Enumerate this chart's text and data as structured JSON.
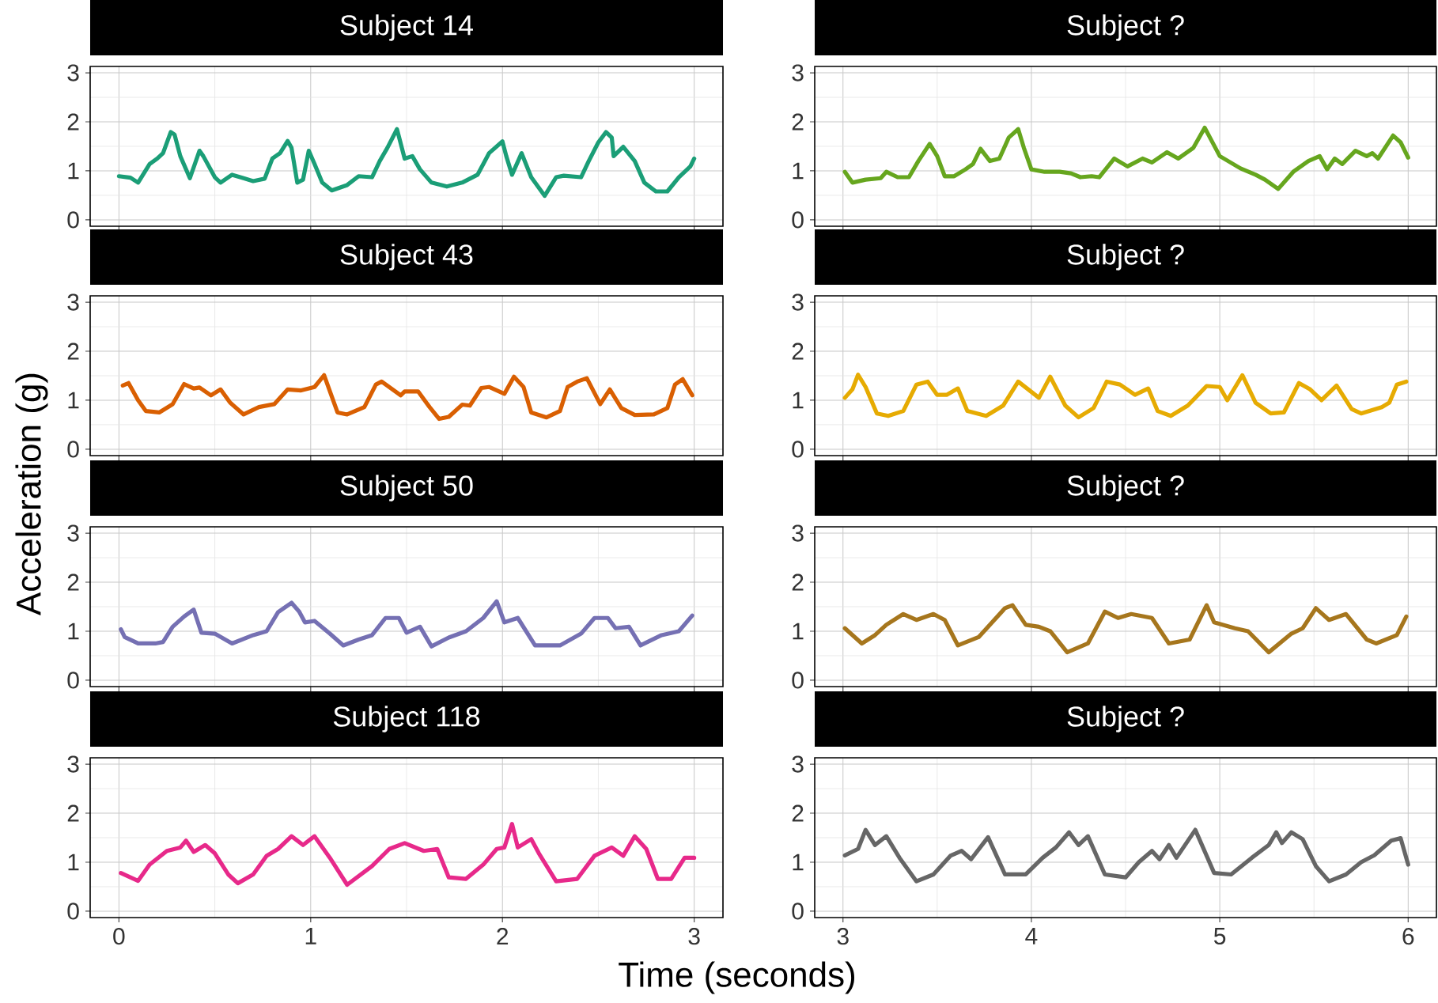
{
  "chart_data": [
    {
      "type": "line",
      "title": "Subject 14",
      "ylabel": "Acceleration (g)",
      "color": "#1b9e77",
      "xlim": [
        -0.15,
        3.15
      ],
      "ylim": [
        -0.13,
        3.13
      ],
      "xticks": [
        0,
        1,
        2,
        3
      ],
      "yticks": [
        0,
        1,
        2,
        3
      ],
      "grid": true,
      "tick_labels": "y",
      "x": [
        0,
        0.06,
        0.1,
        0.16,
        0.2,
        0.23,
        0.27,
        0.29,
        0.32,
        0.37,
        0.42,
        0.44,
        0.5,
        0.53,
        0.59,
        0.65,
        0.7,
        0.76,
        0.8,
        0.84,
        0.88,
        0.9,
        0.93,
        0.96,
        0.99,
        1.02,
        1.06,
        1.11,
        1.19,
        1.25,
        1.32,
        1.36,
        1.4,
        1.45,
        1.49,
        1.53,
        1.57,
        1.63,
        1.71,
        1.79,
        1.87,
        1.93,
        2.0,
        2.02,
        2.05,
        2.1,
        2.15,
        2.22,
        2.28,
        2.32,
        2.41,
        2.45,
        2.5,
        2.54,
        2.57,
        2.58,
        2.63,
        2.69,
        2.74,
        2.8,
        2.86,
        2.92,
        2.98,
        3.0
      ],
      "values": [
        0.89,
        0.86,
        0.76,
        1.14,
        1.25,
        1.36,
        1.79,
        1.74,
        1.3,
        0.85,
        1.41,
        1.3,
        0.87,
        0.76,
        0.92,
        0.85,
        0.79,
        0.84,
        1.25,
        1.36,
        1.61,
        1.47,
        0.76,
        0.82,
        1.41,
        1.14,
        0.76,
        0.6,
        0.71,
        0.89,
        0.87,
        1.2,
        1.47,
        1.85,
        1.25,
        1.3,
        1.03,
        0.76,
        0.68,
        0.76,
        0.92,
        1.36,
        1.6,
        1.3,
        0.92,
        1.36,
        0.87,
        0.49,
        0.87,
        0.9,
        0.87,
        1.2,
        1.58,
        1.79,
        1.68,
        1.3,
        1.49,
        1.2,
        0.76,
        0.58,
        0.58,
        0.87,
        1.09,
        1.25
      ]
    },
    {
      "type": "line",
      "title": "Subject ?",
      "color": "#66a61e",
      "xlim": [
        2.85,
        6.15
      ],
      "ylim": [
        -0.13,
        3.13
      ],
      "xticks": [
        3,
        4,
        5,
        6
      ],
      "yticks": [
        0,
        1,
        2,
        3
      ],
      "grid": true,
      "tick_labels": "y",
      "x": [
        3.01,
        3.05,
        3.12,
        3.2,
        3.23,
        3.29,
        3.35,
        3.4,
        3.46,
        3.5,
        3.54,
        3.59,
        3.65,
        3.69,
        3.73,
        3.78,
        3.83,
        3.88,
        3.93,
        3.96,
        4.0,
        4.07,
        4.15,
        4.21,
        4.26,
        4.32,
        4.36,
        4.44,
        4.51,
        4.59,
        4.64,
        4.72,
        4.78,
        4.86,
        4.92,
        5.0,
        5.11,
        5.19,
        5.24,
        5.31,
        5.39,
        5.47,
        5.53,
        5.57,
        5.61,
        5.65,
        5.72,
        5.78,
        5.81,
        5.84,
        5.92,
        5.96,
        6.0
      ],
      "values": [
        0.98,
        0.76,
        0.82,
        0.85,
        0.98,
        0.87,
        0.87,
        1.2,
        1.55,
        1.3,
        0.89,
        0.89,
        1.03,
        1.14,
        1.45,
        1.2,
        1.25,
        1.68,
        1.85,
        1.47,
        1.03,
        0.98,
        0.98,
        0.95,
        0.87,
        0.89,
        0.87,
        1.25,
        1.09,
        1.25,
        1.17,
        1.38,
        1.25,
        1.47,
        1.88,
        1.3,
        1.05,
        0.92,
        0.82,
        0.63,
        0.98,
        1.2,
        1.3,
        1.03,
        1.25,
        1.14,
        1.41,
        1.3,
        1.36,
        1.25,
        1.72,
        1.58,
        1.27
      ]
    },
    {
      "type": "line",
      "title": "Subject 43",
      "color": "#d95f02",
      "xlim": [
        -0.15,
        3.15
      ],
      "ylim": [
        -0.13,
        3.13
      ],
      "xticks": [
        0,
        1,
        2,
        3
      ],
      "yticks": [
        0,
        1,
        2,
        3
      ],
      "grid": true,
      "tick_labels": "y",
      "x": [
        0.02,
        0.05,
        0.1,
        0.14,
        0.21,
        0.28,
        0.34,
        0.39,
        0.42,
        0.48,
        0.53,
        0.58,
        0.65,
        0.73,
        0.81,
        0.88,
        0.95,
        1.02,
        1.07,
        1.14,
        1.19,
        1.28,
        1.34,
        1.37,
        1.42,
        1.47,
        1.49,
        1.56,
        1.62,
        1.67,
        1.72,
        1.79,
        1.83,
        1.89,
        1.93,
        2.01,
        2.06,
        2.11,
        2.15,
        2.23,
        2.3,
        2.34,
        2.39,
        2.44,
        2.51,
        2.56,
        2.62,
        2.69,
        2.79,
        2.86,
        2.9,
        2.94,
        2.99
      ],
      "values": [
        1.3,
        1.35,
        1.0,
        0.78,
        0.75,
        0.92,
        1.33,
        1.24,
        1.26,
        1.1,
        1.22,
        0.95,
        0.71,
        0.86,
        0.92,
        1.22,
        1.2,
        1.27,
        1.51,
        0.75,
        0.71,
        0.86,
        1.32,
        1.38,
        1.24,
        1.1,
        1.18,
        1.18,
        0.86,
        0.62,
        0.66,
        0.91,
        0.89,
        1.25,
        1.27,
        1.13,
        1.48,
        1.27,
        0.75,
        0.65,
        0.78,
        1.27,
        1.38,
        1.45,
        0.92,
        1.22,
        0.84,
        0.7,
        0.71,
        0.84,
        1.32,
        1.43,
        1.1
      ]
    },
    {
      "type": "line",
      "title": "Subject ?",
      "color": "#e6ab02",
      "xlim": [
        2.85,
        6.15
      ],
      "ylim": [
        -0.13,
        3.13
      ],
      "xticks": [
        3,
        4,
        5,
        6
      ],
      "yticks": [
        0,
        1,
        2,
        3
      ],
      "grid": true,
      "tick_labels": "y",
      "x": [
        3.01,
        3.05,
        3.08,
        3.12,
        3.18,
        3.24,
        3.32,
        3.39,
        3.45,
        3.5,
        3.55,
        3.61,
        3.66,
        3.76,
        3.85,
        3.93,
        4.04,
        4.1,
        4.18,
        4.25,
        4.33,
        4.4,
        4.47,
        4.55,
        4.62,
        4.67,
        4.74,
        4.83,
        4.93,
        5.0,
        5.04,
        5.12,
        5.19,
        5.27,
        5.34,
        5.42,
        5.48,
        5.54,
        5.62,
        5.7,
        5.75,
        5.86,
        5.9,
        5.94,
        5.99
      ],
      "values": [
        1.05,
        1.22,
        1.52,
        1.27,
        0.73,
        0.68,
        0.78,
        1.32,
        1.38,
        1.11,
        1.11,
        1.24,
        0.78,
        0.68,
        0.89,
        1.38,
        1.05,
        1.48,
        0.89,
        0.65,
        0.84,
        1.38,
        1.32,
        1.11,
        1.24,
        0.78,
        0.68,
        0.89,
        1.29,
        1.27,
        1.0,
        1.51,
        0.95,
        0.73,
        0.75,
        1.35,
        1.22,
        1.0,
        1.3,
        0.82,
        0.73,
        0.86,
        0.95,
        1.32,
        1.38
      ]
    },
    {
      "type": "line",
      "title": "Subject 50",
      "color": "#7570b3",
      "xlim": [
        -0.15,
        3.15
      ],
      "ylim": [
        -0.13,
        3.13
      ],
      "xticks": [
        0,
        1,
        2,
        3
      ],
      "yticks": [
        0,
        1,
        2,
        3
      ],
      "grid": true,
      "tick_labels": "y",
      "x": [
        0.01,
        0.03,
        0.1,
        0.19,
        0.23,
        0.28,
        0.34,
        0.39,
        0.43,
        0.5,
        0.59,
        0.7,
        0.77,
        0.83,
        0.9,
        0.94,
        0.97,
        1.02,
        1.1,
        1.17,
        1.25,
        1.32,
        1.39,
        1.46,
        1.5,
        1.57,
        1.63,
        1.72,
        1.81,
        1.9,
        1.97,
        2.01,
        2.08,
        2.17,
        2.3,
        2.41,
        2.48,
        2.55,
        2.59,
        2.66,
        2.72,
        2.83,
        2.92,
        2.99
      ],
      "values": [
        1.04,
        0.88,
        0.75,
        0.75,
        0.78,
        1.09,
        1.3,
        1.44,
        0.97,
        0.95,
        0.75,
        0.92,
        1.0,
        1.39,
        1.58,
        1.4,
        1.18,
        1.21,
        0.95,
        0.71,
        0.83,
        0.92,
        1.27,
        1.27,
        0.97,
        1.09,
        0.69,
        0.87,
        1.0,
        1.27,
        1.61,
        1.18,
        1.27,
        0.71,
        0.71,
        0.95,
        1.27,
        1.27,
        1.06,
        1.09,
        0.71,
        0.92,
        1.0,
        1.32
      ]
    },
    {
      "type": "line",
      "title": "Subject ?",
      "color": "#a6761d",
      "xlim": [
        2.85,
        6.15
      ],
      "ylim": [
        -0.13,
        3.13
      ],
      "xticks": [
        3,
        4,
        5,
        6
      ],
      "yticks": [
        0,
        1,
        2,
        3
      ],
      "grid": true,
      "tick_labels": "y",
      "x": [
        3.01,
        3.1,
        3.17,
        3.23,
        3.32,
        3.39,
        3.48,
        3.54,
        3.61,
        3.72,
        3.86,
        3.9,
        3.97,
        4.04,
        4.1,
        4.19,
        4.3,
        4.39,
        4.46,
        4.53,
        4.64,
        4.73,
        4.84,
        4.93,
        4.97,
        5.08,
        5.15,
        5.26,
        5.38,
        5.44,
        5.51,
        5.58,
        5.67,
        5.78,
        5.83,
        5.94,
        5.99
      ],
      "values": [
        1.06,
        0.75,
        0.92,
        1.13,
        1.35,
        1.23,
        1.35,
        1.23,
        0.71,
        0.88,
        1.47,
        1.53,
        1.13,
        1.09,
        1.0,
        0.57,
        0.75,
        1.4,
        1.27,
        1.35,
        1.27,
        0.75,
        0.83,
        1.53,
        1.18,
        1.06,
        1.0,
        0.57,
        0.95,
        1.06,
        1.47,
        1.23,
        1.35,
        0.83,
        0.75,
        0.92,
        1.3
      ]
    },
    {
      "type": "line",
      "title": "Subject 118",
      "xlabel": "Time (seconds)",
      "color": "#e7298a",
      "xlim": [
        -0.15,
        3.15
      ],
      "ylim": [
        -0.13,
        3.13
      ],
      "xticks": [
        0,
        1,
        2,
        3
      ],
      "yticks": [
        0,
        1,
        2,
        3
      ],
      "grid": true,
      "x": [
        0.01,
        0.1,
        0.16,
        0.25,
        0.32,
        0.35,
        0.39,
        0.45,
        0.5,
        0.57,
        0.62,
        0.7,
        0.77,
        0.83,
        0.9,
        0.96,
        1.02,
        1.1,
        1.19,
        1.32,
        1.41,
        1.49,
        1.59,
        1.66,
        1.72,
        1.81,
        1.9,
        1.97,
        2.01,
        2.05,
        2.08,
        2.15,
        2.19,
        2.28,
        2.39,
        2.48,
        2.57,
        2.63,
        2.69,
        2.75,
        2.81,
        2.88,
        2.95,
        3.0
      ],
      "values": [
        0.78,
        0.62,
        0.95,
        1.23,
        1.3,
        1.44,
        1.21,
        1.35,
        1.18,
        0.75,
        0.57,
        0.75,
        1.13,
        1.27,
        1.53,
        1.35,
        1.53,
        1.09,
        0.54,
        0.92,
        1.27,
        1.39,
        1.23,
        1.27,
        0.69,
        0.66,
        0.95,
        1.27,
        1.3,
        1.78,
        1.3,
        1.47,
        1.18,
        0.61,
        0.66,
        1.13,
        1.3,
        1.13,
        1.53,
        1.27,
        0.66,
        0.66,
        1.09,
        1.09
      ]
    },
    {
      "type": "line",
      "title": "Subject ?",
      "color": "#666666",
      "xlim": [
        2.85,
        6.15
      ],
      "ylim": [
        -0.13,
        3.13
      ],
      "xticks": [
        3,
        4,
        5,
        6
      ],
      "yticks": [
        0,
        1,
        2,
        3
      ],
      "grid": true,
      "x": [
        3.01,
        3.08,
        3.12,
        3.17,
        3.23,
        3.3,
        3.39,
        3.48,
        3.57,
        3.63,
        3.68,
        3.77,
        3.86,
        3.97,
        4.06,
        4.13,
        4.2,
        4.25,
        4.3,
        4.39,
        4.5,
        4.57,
        4.64,
        4.68,
        4.73,
        4.77,
        4.87,
        4.97,
        5.06,
        5.17,
        5.26,
        5.3,
        5.33,
        5.38,
        5.44,
        5.51,
        5.58,
        5.67,
        5.75,
        5.82,
        5.91,
        5.96,
        6.0
      ],
      "values": [
        1.14,
        1.27,
        1.66,
        1.35,
        1.53,
        1.09,
        0.61,
        0.75,
        1.13,
        1.23,
        1.06,
        1.51,
        0.75,
        0.75,
        1.09,
        1.3,
        1.61,
        1.35,
        1.53,
        0.75,
        0.69,
        1.0,
        1.23,
        1.06,
        1.35,
        1.09,
        1.66,
        0.78,
        0.75,
        1.09,
        1.35,
        1.61,
        1.39,
        1.61,
        1.47,
        0.92,
        0.61,
        0.75,
        1.0,
        1.14,
        1.44,
        1.49,
        0.95
      ]
    }
  ]
}
